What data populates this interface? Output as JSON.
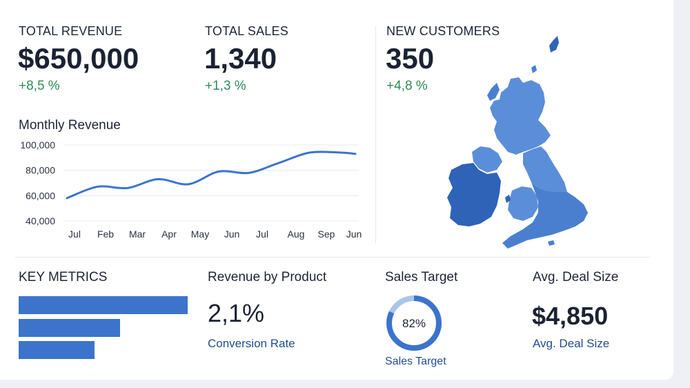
{
  "kpis": {
    "revenue": {
      "title": "TOTAL REVENUE",
      "value": "$650,000",
      "delta": "+8,5 %"
    },
    "sales": {
      "title": "TOTAL SALES",
      "value": "1,340",
      "delta": "+1,3 %"
    },
    "customers": {
      "title": "NEW CUSTOMERS",
      "value": "350",
      "delta": "+4,8 %"
    }
  },
  "colors": {
    "accent": "#3c74cc",
    "positive": "#2e8b57",
    "caption": "#1f4c8f",
    "donut_track": "#a8c5ec",
    "map_light": "#5b8ed8",
    "map_dark": "#2f63b8"
  },
  "chart_data": {
    "type": "line",
    "title": "Monthly Revenue",
    "categories": [
      "Jul",
      "Feb",
      "Mar",
      "Apr",
      "May",
      "Jun",
      "Jul",
      "Aug",
      "Sep",
      "Jun"
    ],
    "x": [
      0,
      1,
      2,
      3,
      4,
      5,
      6,
      7,
      8,
      9,
      9.5
    ],
    "values": [
      58000,
      67000,
      66000,
      73000,
      69000,
      79000,
      78000,
      86000,
      94000,
      94000,
      93000
    ],
    "yticks": [
      "100,000",
      "80,000",
      "60,000",
      "40,000"
    ],
    "ylim": [
      40000,
      100000
    ],
    "grid": true,
    "legend": "none"
  },
  "map": {
    "name": "uk-ireland-map",
    "icon": "map-icon"
  },
  "key_metrics": {
    "title": "KEY METRICS",
    "bars": [
      1.0,
      0.6,
      0.45
    ]
  },
  "revenue_by_product": {
    "title": "Revenue by Product",
    "value": "2,1%",
    "caption": "Conversion Rate"
  },
  "sales_target": {
    "title": "Sales Target",
    "percent": 82,
    "label": "82%",
    "caption": "Sales Target"
  },
  "avg_deal": {
    "title": "Avg. Deal Size",
    "value": "$4,850",
    "caption": "Avg. Deal Size"
  }
}
